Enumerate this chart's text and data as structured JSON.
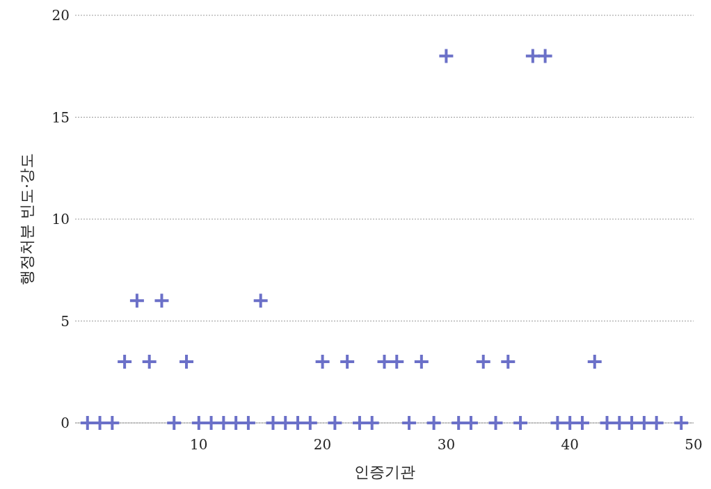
{
  "chart_data": {
    "type": "scatter",
    "xlabel": "인증기관",
    "ylabel": "행정처분 빈도·강도",
    "x": [
      1,
      2,
      3,
      4,
      5,
      6,
      7,
      8,
      9,
      10,
      11,
      12,
      13,
      14,
      15,
      16,
      17,
      18,
      19,
      20,
      21,
      22,
      23,
      24,
      25,
      26,
      27,
      28,
      29,
      30,
      31,
      32,
      33,
      34,
      35,
      36,
      37,
      38,
      39,
      40,
      41,
      42,
      43,
      44,
      45,
      46,
      47,
      49
    ],
    "values": [
      0,
      0,
      0,
      3,
      6,
      3,
      6,
      0,
      3,
      0,
      0,
      0,
      0,
      0,
      6,
      0,
      0,
      0,
      0,
      3,
      0,
      3,
      0,
      0,
      3,
      3,
      0,
      3,
      0,
      18,
      0,
      0,
      3,
      0,
      3,
      0,
      18,
      18,
      0,
      0,
      0,
      3,
      0,
      0,
      0,
      0,
      0,
      0
    ],
    "color": "#6b70c8",
    "marker": "cross",
    "xlim": [
      0,
      50
    ],
    "xticks": [
      10,
      20,
      30,
      40,
      50
    ],
    "ylim": [
      0,
      20
    ],
    "yticks": [
      0,
      5,
      10,
      15,
      20
    ],
    "grid": "y",
    "legend": false
  }
}
